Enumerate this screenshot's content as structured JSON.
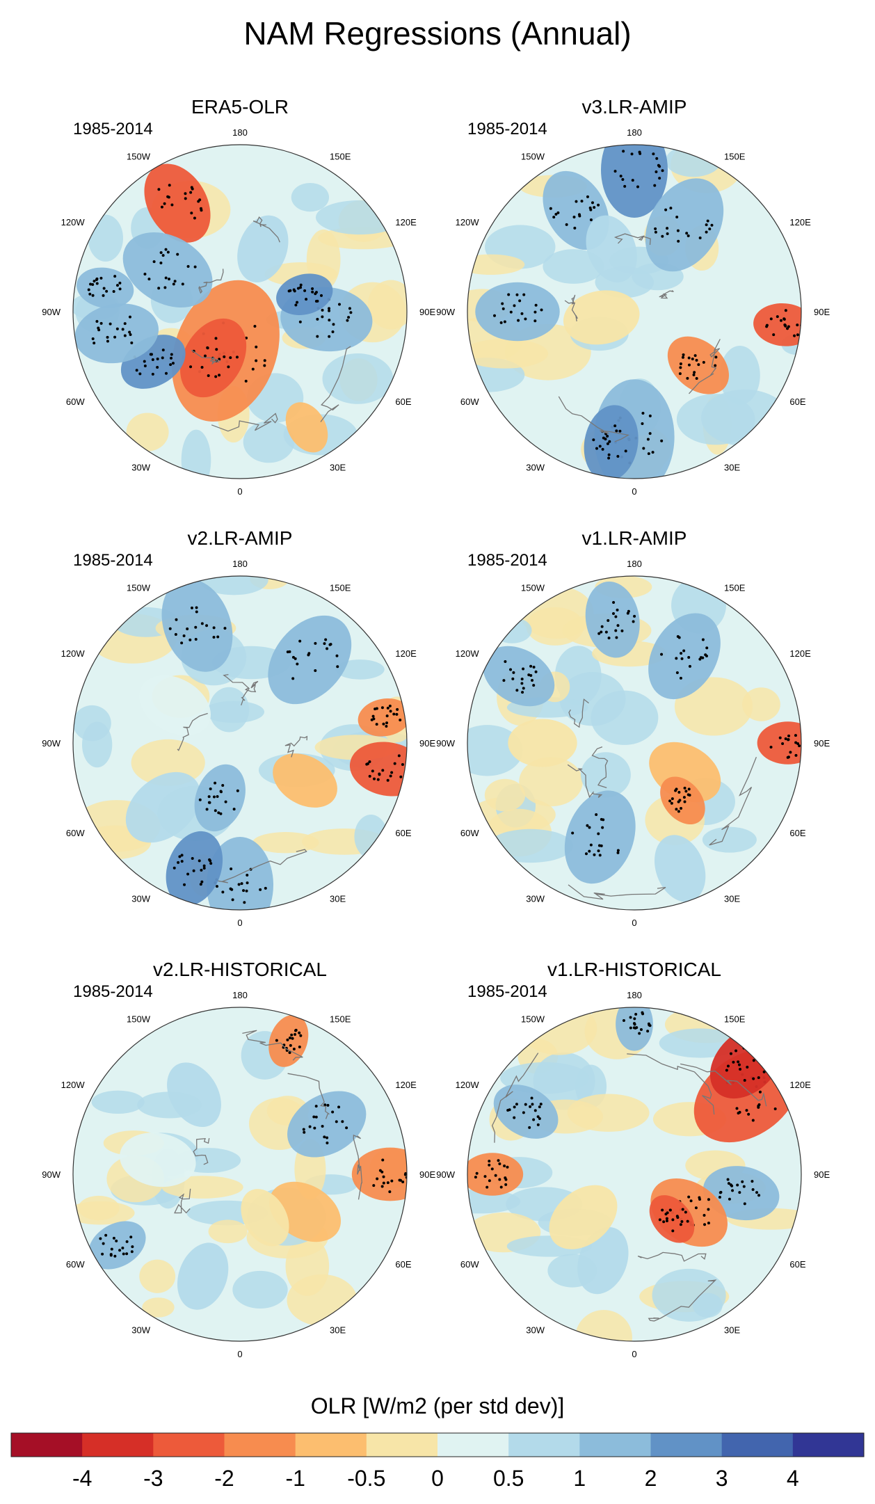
{
  "chart_data": {
    "type": "polar_stereographic_map_panels",
    "title": "NAM Regressions (Annual)",
    "period": "1985-2014",
    "longitude_labels": [
      "180",
      "150E",
      "120E",
      "90E",
      "60E",
      "30E",
      "0",
      "30W",
      "60W",
      "90W",
      "120W",
      "150W"
    ],
    "panels": [
      {
        "name": "ERA5-OLR",
        "period": "1985-2014"
      },
      {
        "name": "v3.LR-AMIP",
        "period": "1985-2014"
      },
      {
        "name": "v2.LR-AMIP",
        "period": "1985-2014"
      },
      {
        "name": "v1.LR-AMIP",
        "period": "1985-2014"
      },
      {
        "name": "v2.LR-HISTORICAL",
        "period": "1985-2014"
      },
      {
        "name": "v1.LR-HISTORICAL",
        "period": "1985-2014"
      }
    ],
    "colorbar": {
      "label": "OLR [W/m2 (per std dev)]",
      "ticks": [
        "-4",
        "-3",
        "-2",
        "-1",
        "-0.5",
        "0",
        "0.5",
        "1",
        "2",
        "3",
        "4"
      ],
      "colors": [
        "#a50f26",
        "#d62f27",
        "#ed5a3a",
        "#f78c4f",
        "#fcbe6f",
        "#f7e5a8",
        "#e0f3f2",
        "#b3daea",
        "#8cbcdb",
        "#6192c6",
        "#4265ae",
        "#313695"
      ]
    }
  }
}
